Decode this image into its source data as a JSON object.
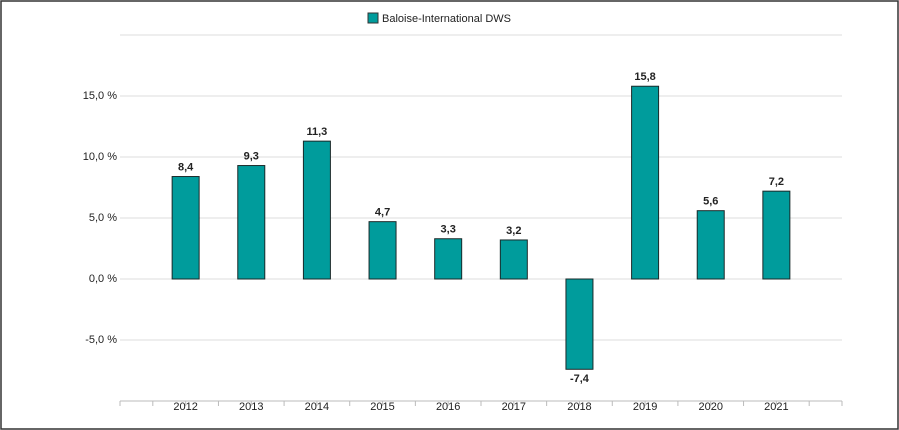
{
  "chart_data": {
    "type": "bar",
    "categories": [
      "2012",
      "2013",
      "2014",
      "2015",
      "2016",
      "2017",
      "2018",
      "2019",
      "2020",
      "2021"
    ],
    "series": [
      {
        "name": "Baloise-International DWS",
        "color": "#009c9c",
        "values": [
          8.4,
          9.3,
          11.3,
          4.7,
          3.3,
          3.2,
          -7.4,
          15.8,
          5.6,
          7.2
        ],
        "value_labels": [
          "8,4",
          "9,3",
          "11,3",
          "4,7",
          "3,3",
          "3,2",
          "-7,4",
          "15,8",
          "5,6",
          "7,2"
        ]
      }
    ],
    "ylim": [
      -10,
      20
    ],
    "yticks": [
      {
        "value": -5,
        "label": "-5,0 %"
      },
      {
        "value": 0,
        "label": "0,0 %"
      },
      {
        "value": 5,
        "label": "5,0 %"
      },
      {
        "value": 10,
        "label": "10,0 %"
      },
      {
        "value": 15,
        "label": "15,0 %"
      }
    ],
    "grid": true,
    "legend": "top"
  }
}
